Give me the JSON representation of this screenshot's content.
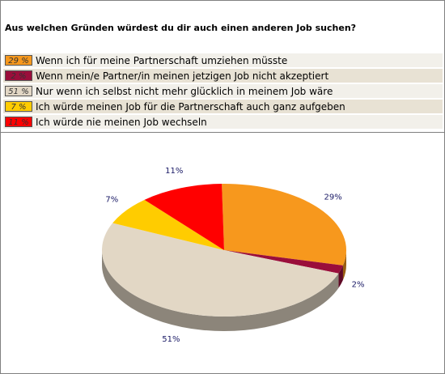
{
  "question": "Aus welchen Gründen würdest du dir auch einen anderen Job suchen?",
  "colors": {
    "orange": "#f7981d",
    "maroon": "#9a0e3b",
    "beige": "#e2d7c5",
    "yellow": "#ffcc00",
    "red": "#ff0000"
  },
  "chart_data": {
    "type": "pie",
    "title": "Aus welchen Gründen würdest du dir auch einen anderen Job suchen?",
    "categories": [
      "Wenn ich für meine Partnerschaft umziehen müsste",
      "Wenn mein/e Partner/in meinen jetzigen Job nicht akzeptiert",
      "Nur wenn ich selbst nicht mehr glücklich in meinem Job wäre",
      "Ich würde meinen Job für die Partnerschaft auch ganz aufgeben",
      "Ich würde nie meinen Job wechseln"
    ],
    "values": [
      29,
      2,
      51,
      7,
      11
    ],
    "value_labels": [
      "29 %",
      "2 %",
      "51 %",
      "7 %",
      "11 %"
    ],
    "slice_labels": [
      "29%",
      "2%",
      "51%",
      "7%",
      "11%"
    ],
    "colors": [
      "#f7981d",
      "#9a0e3b",
      "#e2d7c5",
      "#ffcc00",
      "#ff0000"
    ],
    "legend_position": "top"
  }
}
